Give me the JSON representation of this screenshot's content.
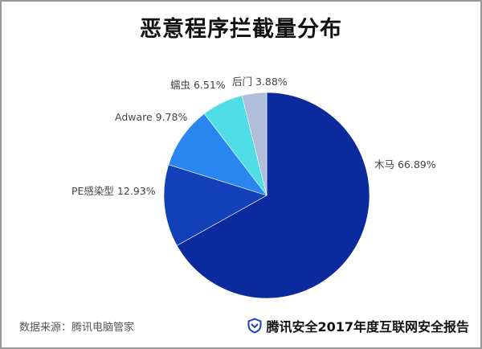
{
  "header": {
    "title": "恶意程序拦截量分布"
  },
  "chart_data": {
    "type": "pie",
    "title": "恶意程序拦截量分布",
    "start_angle": "12 o'clock, clockwise",
    "slices": [
      {
        "label": "木马",
        "value": 66.89,
        "display": "木马 66.89%",
        "color": "#0a2a9e"
      },
      {
        "label": "PE感染型",
        "value": 12.93,
        "display": "PE感染型 12.93%",
        "color": "#1240b8"
      },
      {
        "label": "Adware",
        "value": 9.78,
        "display": "Adware 9.78%",
        "color": "#2a86ef"
      },
      {
        "label": "蠕虫",
        "value": 6.51,
        "display": "蠕虫 6.51%",
        "color": "#4fdde8"
      },
      {
        "label": "后门",
        "value": 3.88,
        "display": "后门 3.88%",
        "color": "#b0bedb"
      }
    ],
    "unit": "%"
  },
  "footer": {
    "source": "数据来源：腾讯电脑管家",
    "brand": "腾讯安全2017年度互联网安全报告",
    "brand_icon": "shield-check-icon",
    "brand_color": "#1f3fbf"
  }
}
